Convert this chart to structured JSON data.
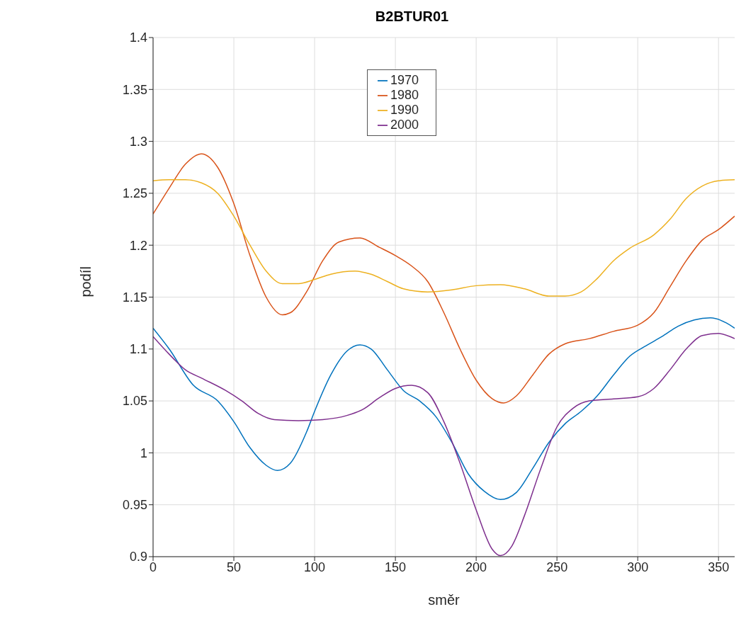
{
  "chart_data": {
    "type": "line",
    "title": "B2BTUR01",
    "xlabel": "směr",
    "ylabel": "podíl",
    "xlim": [
      0,
      360
    ],
    "xticks": [
      0,
      50,
      100,
      150,
      200,
      250,
      300,
      350
    ],
    "ylim": [
      0.9,
      1.4
    ],
    "yticks": [
      0.9,
      0.95,
      1,
      1.05,
      1.1,
      1.15,
      1.2,
      1.25,
      1.3,
      1.35,
      1.4
    ],
    "grid": true,
    "legend": "top",
    "series": [
      {
        "name": "1970",
        "color": "#0072bd",
        "x": [
          0,
          10,
          25,
          40,
          50,
          60,
          70,
          77,
          85,
          95,
          100,
          110,
          120,
          128,
          135,
          145,
          155,
          165,
          175,
          185,
          195,
          205,
          215,
          225,
          235,
          245,
          255,
          265,
          275,
          285,
          295,
          305,
          315,
          325,
          335,
          345,
          355,
          360
        ],
        "values": [
          1.12,
          1.1,
          1.065,
          1.05,
          1.03,
          1.005,
          0.988,
          0.983,
          0.99,
          1.02,
          1.04,
          1.075,
          1.098,
          1.104,
          1.1,
          1.08,
          1.06,
          1.05,
          1.035,
          1.01,
          0.98,
          0.963,
          0.955,
          0.962,
          0.985,
          1.01,
          1.028,
          1.04,
          1.055,
          1.075,
          1.093,
          1.103,
          1.112,
          1.122,
          1.128,
          1.13,
          1.125,
          1.12
        ]
      },
      {
        "name": "1980",
        "color": "#d95319",
        "x": [
          0,
          10,
          20,
          30,
          40,
          50,
          60,
          70,
          80,
          85,
          95,
          105,
          115,
          128,
          140,
          150,
          160,
          170,
          180,
          190,
          200,
          210,
          217,
          225,
          235,
          245,
          255,
          270,
          285,
          300,
          310,
          320,
          330,
          340,
          350,
          360
        ],
        "values": [
          1.23,
          1.255,
          1.278,
          1.288,
          1.275,
          1.24,
          1.19,
          1.15,
          1.133,
          1.135,
          1.155,
          1.185,
          1.203,
          1.207,
          1.198,
          1.19,
          1.18,
          1.165,
          1.135,
          1.1,
          1.07,
          1.052,
          1.048,
          1.055,
          1.075,
          1.095,
          1.105,
          1.11,
          1.117,
          1.123,
          1.135,
          1.16,
          1.185,
          1.205,
          1.215,
          1.228
        ]
      },
      {
        "name": "1990",
        "color": "#edb120",
        "x": [
          0,
          10,
          20,
          30,
          40,
          50,
          60,
          70,
          80,
          90,
          100,
          110,
          125,
          135,
          145,
          155,
          170,
          185,
          200,
          215,
          230,
          245,
          255,
          265,
          275,
          285,
          295,
          310,
          320,
          330,
          340,
          350,
          360
        ],
        "values": [
          1.262,
          1.263,
          1.263,
          1.26,
          1.25,
          1.228,
          1.2,
          1.175,
          1.163,
          1.163,
          1.167,
          1.172,
          1.175,
          1.172,
          1.165,
          1.158,
          1.155,
          1.157,
          1.161,
          1.162,
          1.158,
          1.151,
          1.151,
          1.155,
          1.168,
          1.185,
          1.197,
          1.21,
          1.225,
          1.245,
          1.257,
          1.262,
          1.263
        ]
      },
      {
        "name": "2000",
        "color": "#7e2f8e",
        "x": [
          0,
          10,
          20,
          30,
          45,
          55,
          65,
          75,
          90,
          105,
          120,
          130,
          140,
          150,
          160,
          170,
          180,
          190,
          200,
          210,
          215,
          222,
          230,
          240,
          250,
          260,
          270,
          285,
          300,
          310,
          320,
          330,
          340,
          350,
          360
        ],
        "values": [
          1.112,
          1.095,
          1.08,
          1.072,
          1.06,
          1.05,
          1.038,
          1.032,
          1.031,
          1.032,
          1.036,
          1.042,
          1.053,
          1.062,
          1.065,
          1.058,
          1.03,
          0.99,
          0.945,
          0.907,
          0.901,
          0.91,
          0.94,
          0.985,
          1.025,
          1.043,
          1.05,
          1.052,
          1.054,
          1.062,
          1.08,
          1.1,
          1.113,
          1.115,
          1.11
        ]
      }
    ]
  }
}
